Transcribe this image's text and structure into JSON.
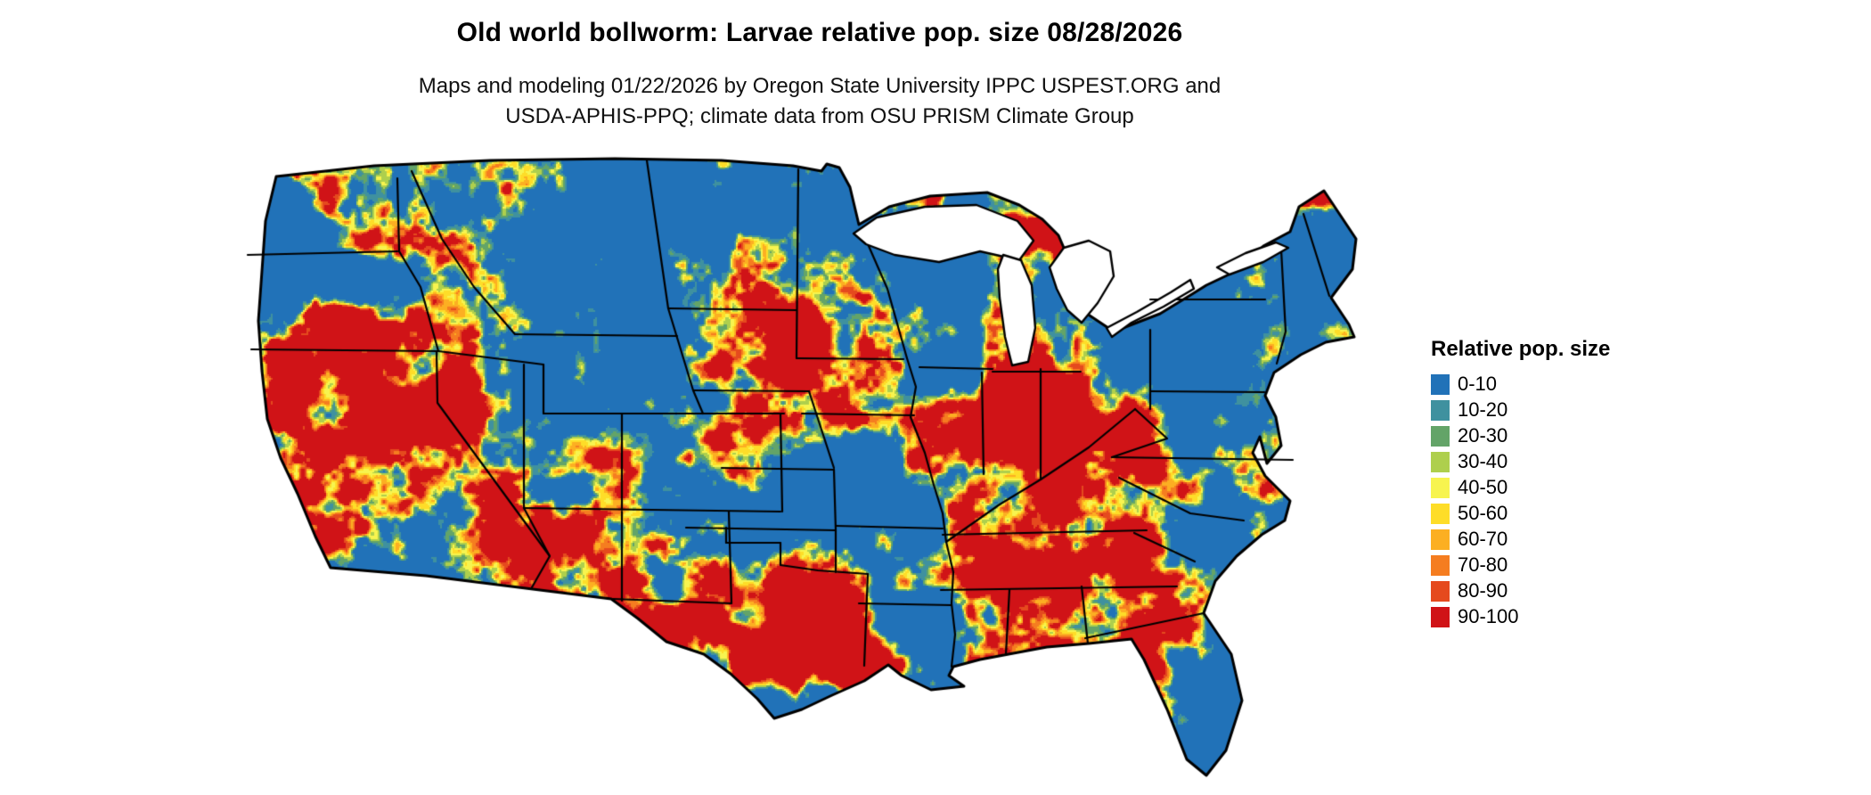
{
  "header": {
    "title": "Old world bollworm: Larvae relative pop. size 08/28/2026",
    "subtitle_line1": "Maps and modeling 01/22/2026 by Oregon State University IPPC USPEST.ORG and",
    "subtitle_line2": "USDA-APHIS-PPQ; climate data from OSU PRISM Climate Group"
  },
  "legend": {
    "title": "Relative pop. size",
    "items": [
      {
        "label": "0-10",
        "color": "#2172b8"
      },
      {
        "label": "10-20",
        "color": "#3f919f"
      },
      {
        "label": "20-30",
        "color": "#63a468"
      },
      {
        "label": "30-40",
        "color": "#aecf4d"
      },
      {
        "label": "40-50",
        "color": "#f7f44f"
      },
      {
        "label": "50-60",
        "color": "#fedd28"
      },
      {
        "label": "60-70",
        "color": "#fcaf22"
      },
      {
        "label": "70-80",
        "color": "#f57d20"
      },
      {
        "label": "80-90",
        "color": "#e54a1e"
      },
      {
        "label": "90-100",
        "color": "#d01317"
      }
    ]
  },
  "map": {
    "region": "Contiguous United States",
    "border_color": "#000000",
    "water_color": "#ffffff"
  }
}
